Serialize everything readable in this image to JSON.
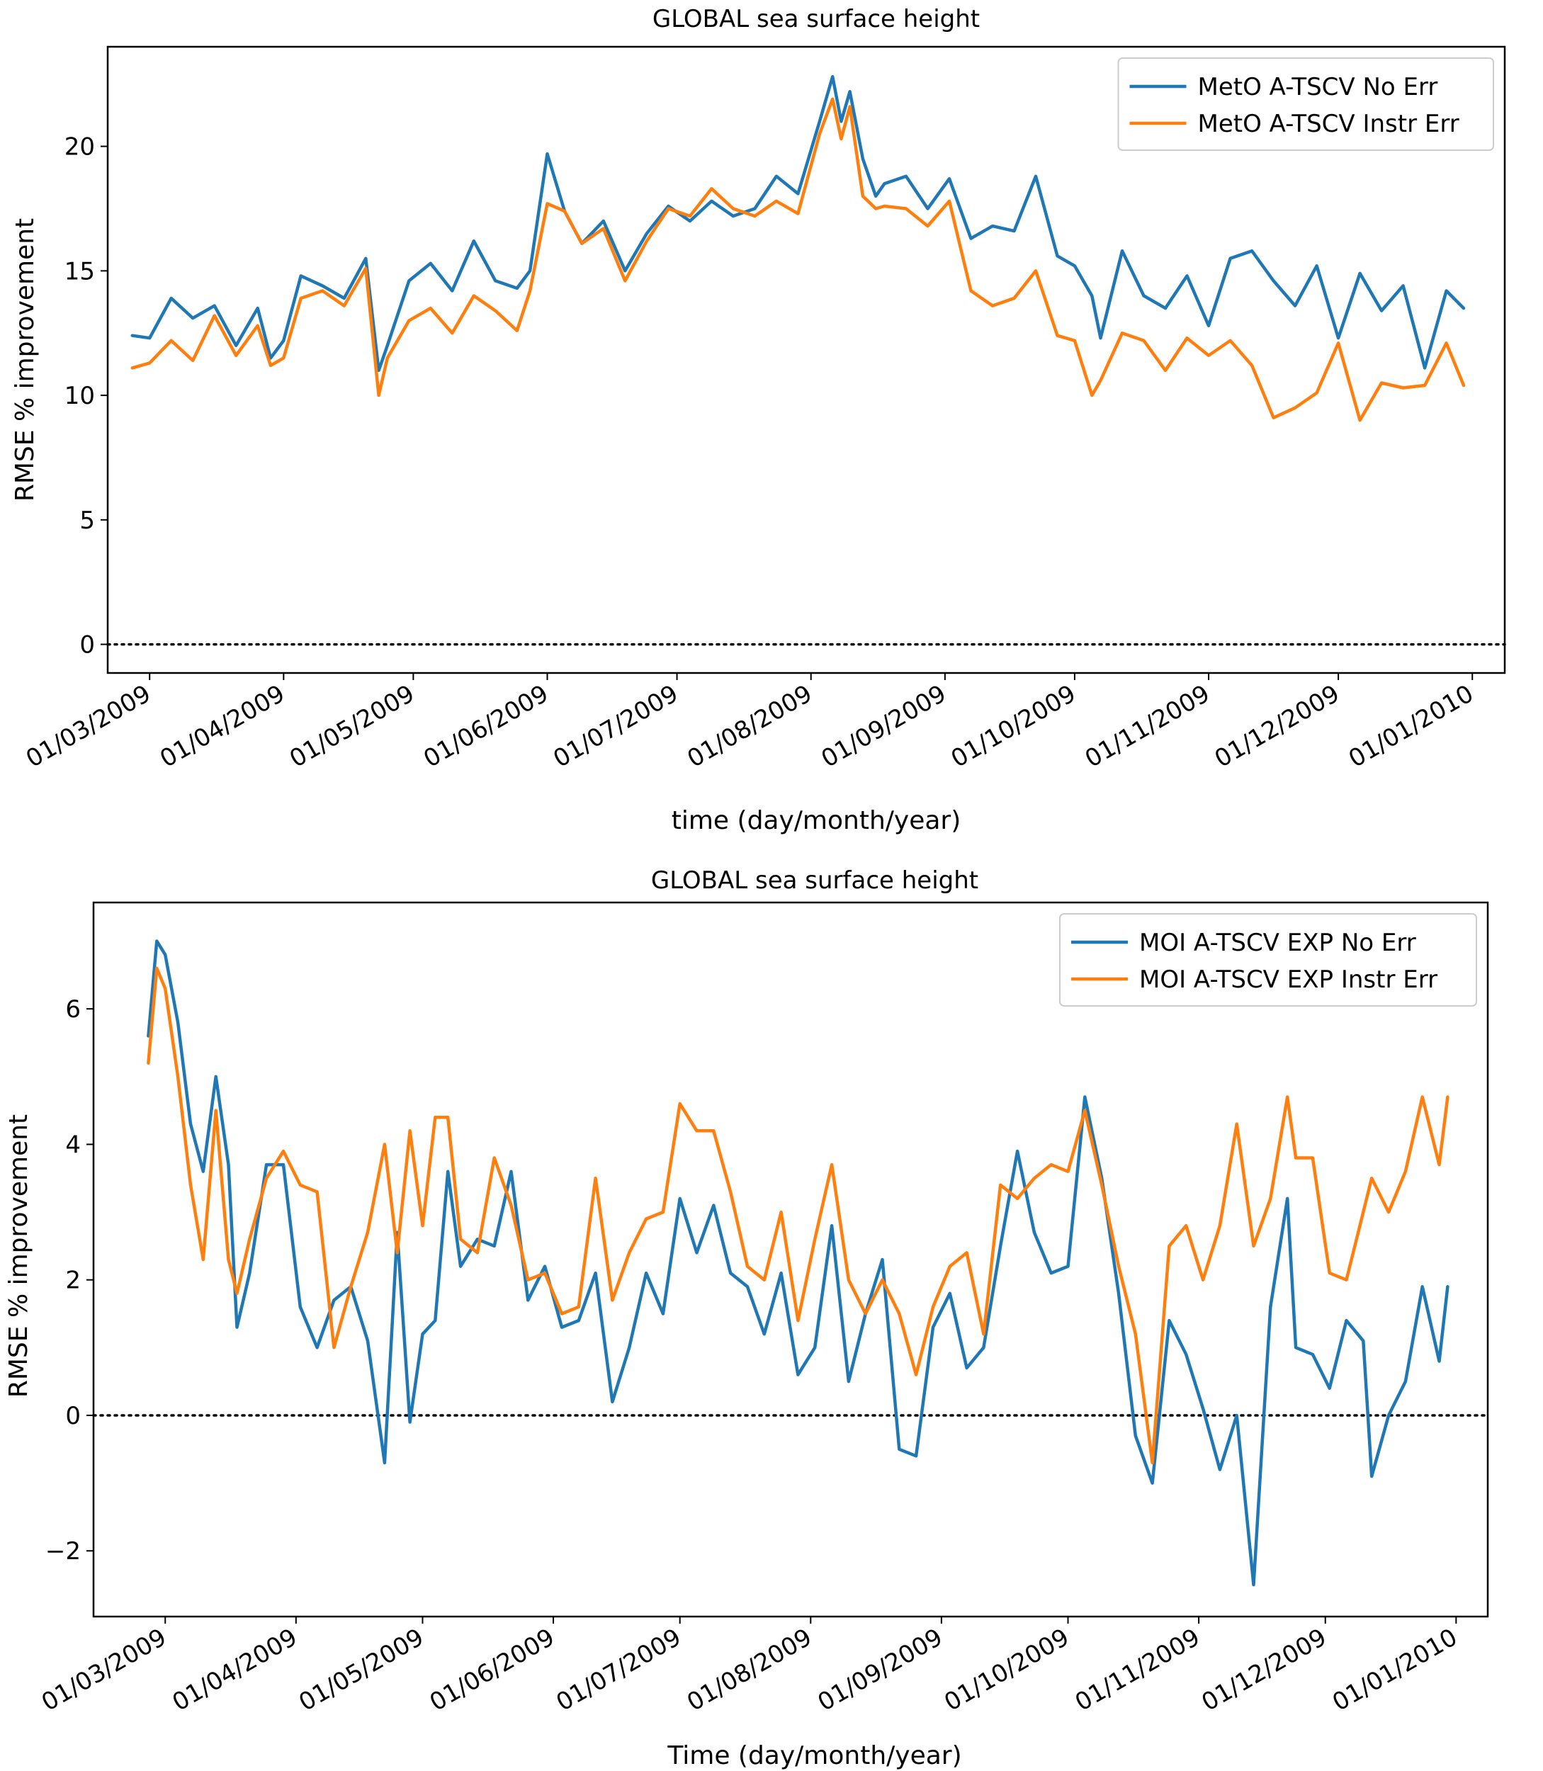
{
  "chart_data": [
    {
      "type": "line",
      "title": "GLOBAL sea surface height",
      "xlabel": "time (day/month/year)",
      "ylabel": "RMSE % improvement",
      "ylim": [
        -1.15,
        24
      ],
      "yticks": [
        0,
        5,
        10,
        15,
        20
      ],
      "ytick_labels": [
        "0",
        "5",
        "10",
        "15",
        "20"
      ],
      "xlim_days": [
        -9.7,
        313.5
      ],
      "x_start_date": "2009-02-25",
      "x_end_date": "2009-12-29",
      "xticks_days": [
        0,
        31,
        61,
        92,
        122,
        153,
        184,
        214,
        245,
        275,
        306
      ],
      "xtick_labels": [
        "01/03/2009",
        "01/04/2009",
        "01/05/2009",
        "01/06/2009",
        "01/07/2009",
        "01/08/2009",
        "01/09/2009",
        "01/10/2009",
        "01/11/2009",
        "01/12/2009",
        "01/01/2010"
      ],
      "reference_line": {
        "y": 0,
        "style": "dotted",
        "color": "#000000"
      },
      "legend_position": "top-right",
      "series": [
        {
          "name": "MetO A-TSCV No Err",
          "color": "#1f77b4",
          "x_days": [
            -4,
            0,
            5,
            10,
            15,
            20,
            25,
            28,
            31,
            35,
            40,
            45,
            50,
            53,
            55,
            60,
            65,
            70,
            75,
            80,
            85,
            88,
            92,
            96,
            100,
            105,
            110,
            115,
            120,
            125,
            130,
            135,
            140,
            145,
            150,
            155,
            158,
            160,
            162,
            165,
            168,
            170,
            175,
            180,
            185,
            190,
            195,
            200,
            205,
            210,
            214,
            218,
            220,
            225,
            230,
            235,
            240,
            245,
            250,
            255,
            260,
            265,
            270,
            275,
            280,
            285,
            290,
            295,
            300,
            304
          ],
          "values": [
            12.4,
            12.3,
            13.9,
            13.1,
            13.6,
            12.0,
            13.5,
            11.5,
            12.2,
            14.8,
            14.4,
            13.9,
            15.5,
            11.0,
            12.0,
            14.6,
            15.3,
            14.2,
            16.2,
            14.6,
            14.3,
            15.0,
            19.7,
            17.4,
            16.1,
            17.0,
            15.0,
            16.5,
            17.6,
            17.0,
            17.8,
            17.2,
            17.5,
            18.8,
            18.1,
            21.0,
            22.8,
            21.0,
            22.2,
            19.5,
            18.0,
            18.5,
            18.8,
            17.5,
            18.7,
            16.3,
            16.8,
            16.6,
            18.8,
            15.6,
            15.2,
            14.0,
            12.3,
            15.8,
            14.0,
            13.5,
            14.8,
            12.8,
            15.5,
            15.8,
            14.6,
            13.6,
            15.2,
            12.3,
            14.9,
            13.4,
            14.4,
            11.1,
            14.2,
            13.5
          ]
        },
        {
          "name": "MetO A-TSCV Instr Err",
          "color": "#ff7f0e",
          "x_days": [
            -4,
            0,
            5,
            10,
            15,
            20,
            25,
            28,
            31,
            35,
            40,
            45,
            50,
            53,
            55,
            60,
            65,
            70,
            75,
            80,
            85,
            88,
            92,
            96,
            100,
            105,
            110,
            115,
            120,
            125,
            130,
            135,
            140,
            145,
            150,
            155,
            158,
            160,
            162,
            165,
            168,
            170,
            175,
            180,
            185,
            190,
            195,
            200,
            205,
            210,
            214,
            218,
            220,
            225,
            230,
            235,
            240,
            245,
            250,
            255,
            260,
            265,
            270,
            275,
            280,
            285,
            290,
            295,
            300,
            304
          ],
          "values": [
            11.1,
            11.3,
            12.2,
            11.4,
            13.2,
            11.6,
            12.8,
            11.2,
            11.5,
            13.9,
            14.2,
            13.6,
            15.1,
            10.0,
            11.5,
            13.0,
            13.5,
            12.5,
            14.0,
            13.4,
            12.6,
            14.2,
            17.7,
            17.4,
            16.1,
            16.7,
            14.6,
            16.2,
            17.5,
            17.2,
            18.3,
            17.5,
            17.2,
            17.8,
            17.3,
            20.5,
            21.9,
            20.3,
            21.6,
            18.0,
            17.5,
            17.6,
            17.5,
            16.8,
            17.8,
            14.2,
            13.6,
            13.9,
            15.0,
            12.4,
            12.2,
            10.0,
            10.6,
            12.5,
            12.2,
            11.0,
            12.3,
            11.6,
            12.2,
            11.2,
            9.1,
            9.5,
            10.1,
            12.1,
            9.0,
            10.5,
            10.3,
            10.4,
            12.1,
            10.4
          ]
        }
      ]
    },
    {
      "type": "line",
      "title": "GLOBAL sea surface height",
      "xlabel": "Time (day/month/year)",
      "ylabel": "RMSE % improvement",
      "ylim": [
        -2.97,
        7.57
      ],
      "yticks": [
        -2,
        0,
        2,
        4,
        6
      ],
      "ytick_labels": [
        "−2",
        "0",
        "2",
        "4",
        "6"
      ],
      "xlim_days": [
        -17,
        313.5
      ],
      "x_start_date": "2009-02-25",
      "x_end_date": "2009-12-29",
      "xticks_days": [
        0,
        31,
        61,
        92,
        122,
        153,
        184,
        214,
        245,
        275,
        306
      ],
      "xtick_labels": [
        "01/03/2009",
        "01/04/2009",
        "01/05/2009",
        "01/06/2009",
        "01/07/2009",
        "01/08/2009",
        "01/09/2009",
        "01/10/2009",
        "01/11/2009",
        "01/12/2009",
        "01/01/2010"
      ],
      "reference_line": {
        "y": 0,
        "style": "dotted",
        "color": "#000000"
      },
      "legend_position": "top-right",
      "series": [
        {
          "name": "MOI A-TSCV EXP No Err",
          "color": "#1f77b4",
          "x_days": [
            -4,
            -2,
            0,
            3,
            6,
            9,
            12,
            15,
            17,
            20,
            24,
            28,
            32,
            36,
            40,
            44,
            48,
            52,
            55,
            58,
            61,
            64,
            67,
            70,
            74,
            78,
            82,
            86,
            90,
            94,
            98,
            102,
            106,
            110,
            114,
            118,
            122,
            126,
            130,
            134,
            138,
            142,
            146,
            150,
            154,
            158,
            162,
            166,
            170,
            174,
            178,
            182,
            186,
            190,
            194,
            198,
            202,
            206,
            210,
            214,
            218,
            222,
            226,
            230,
            234,
            238,
            242,
            246,
            250,
            254,
            258,
            262,
            266,
            268,
            272,
            276,
            280,
            284,
            286,
            290,
            294,
            298,
            302,
            304
          ],
          "values": [
            5.6,
            7.0,
            6.8,
            5.8,
            4.3,
            3.6,
            5.0,
            3.7,
            1.3,
            2.1,
            3.7,
            3.7,
            1.6,
            1.0,
            1.7,
            1.9,
            1.1,
            -0.7,
            2.7,
            -0.1,
            1.2,
            1.4,
            3.6,
            2.2,
            2.6,
            2.5,
            3.6,
            1.7,
            2.2,
            1.3,
            1.4,
            2.1,
            0.2,
            1.0,
            2.1,
            1.5,
            3.2,
            2.4,
            3.1,
            2.1,
            1.9,
            1.2,
            2.1,
            0.6,
            1.0,
            2.8,
            0.5,
            1.5,
            2.3,
            -0.5,
            -0.6,
            1.3,
            1.8,
            0.7,
            1.0,
            2.5,
            3.9,
            2.7,
            2.1,
            2.2,
            4.7,
            3.5,
            1.8,
            -0.3,
            -1.0,
            1.4,
            0.9,
            0.1,
            -0.8,
            0.0,
            -2.5,
            1.6,
            3.2,
            1.0,
            0.9,
            0.4,
            1.4,
            1.1,
            -0.9,
            0.0,
            0.5,
            1.9,
            0.8,
            1.9
          ]
        },
        {
          "name": "MOI A-TSCV EXP Instr Err",
          "color": "#ff7f0e",
          "x_days": [
            -4,
            -2,
            0,
            3,
            6,
            9,
            12,
            15,
            17,
            20,
            24,
            28,
            32,
            36,
            40,
            44,
            48,
            52,
            55,
            58,
            61,
            64,
            67,
            70,
            74,
            78,
            82,
            86,
            90,
            94,
            98,
            102,
            106,
            110,
            114,
            118,
            122,
            126,
            130,
            134,
            138,
            142,
            146,
            150,
            154,
            158,
            162,
            166,
            170,
            174,
            178,
            182,
            186,
            190,
            194,
            198,
            202,
            206,
            210,
            214,
            218,
            222,
            226,
            230,
            234,
            238,
            242,
            246,
            250,
            254,
            258,
            262,
            266,
            268,
            272,
            276,
            280,
            284,
            286,
            290,
            294,
            298,
            302,
            304
          ],
          "values": [
            5.2,
            6.6,
            6.3,
            5.0,
            3.4,
            2.3,
            4.5,
            2.3,
            1.8,
            2.6,
            3.5,
            3.9,
            3.4,
            3.3,
            1.0,
            1.9,
            2.7,
            4.0,
            2.4,
            4.2,
            2.8,
            4.4,
            4.4,
            2.6,
            2.4,
            3.8,
            3.1,
            2.0,
            2.1,
            1.5,
            1.6,
            3.5,
            1.7,
            2.4,
            2.9,
            3.0,
            4.6,
            4.2,
            4.2,
            3.3,
            2.2,
            2.0,
            3.0,
            1.4,
            2.6,
            3.7,
            2.0,
            1.5,
            2.0,
            1.5,
            0.6,
            1.6,
            2.2,
            2.4,
            1.2,
            3.4,
            3.2,
            3.5,
            3.7,
            3.6,
            4.5,
            3.4,
            2.2,
            1.2,
            -0.7,
            2.5,
            2.8,
            2.0,
            2.8,
            4.3,
            2.5,
            3.2,
            4.7,
            3.8,
            3.8,
            2.1,
            2.0,
            3.0,
            3.5,
            3.0,
            3.6,
            4.7,
            3.7,
            4.7
          ]
        }
      ]
    }
  ]
}
